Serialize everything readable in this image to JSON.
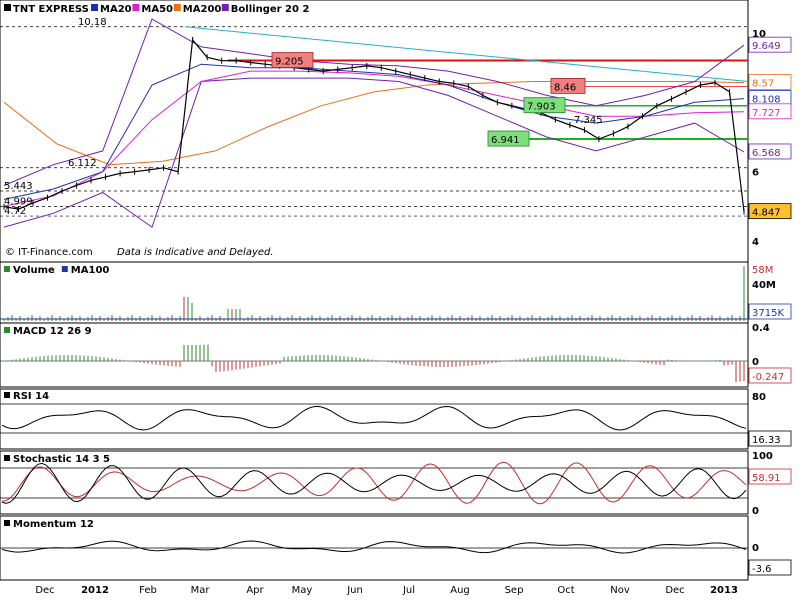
{
  "chart_data": {
    "type": "line",
    "instrument": "TNT EXPRESS",
    "credit": "© IT-Finance.com",
    "disclaimer": "Data is Indicative and Delayed.",
    "x_axis_labels": [
      "Dec",
      "2012",
      "Feb",
      "Mar",
      "Apr",
      "May",
      "Jun",
      "Jul",
      "Aug",
      "Sep",
      "Oct",
      "Nov",
      "Dec",
      "2013"
    ],
    "price": {
      "legend": [
        {
          "name": "TNT EXPRESS",
          "color": "#000000"
        },
        {
          "name": "MA20",
          "color": "#1a2fb5"
        },
        {
          "name": "MA50",
          "color": "#e020d0"
        },
        {
          "name": "MA200",
          "color": "#e87018"
        },
        {
          "name": "Bollinger 20 2",
          "color": "#7020b0"
        }
      ],
      "ylim": [
        4,
        10.2
      ],
      "y_ticks": [
        "10",
        "8",
        "6",
        "4"
      ],
      "close": [
        4.99,
        4.92,
        5.1,
        5.25,
        5.443,
        5.6,
        5.75,
        5.85,
        5.95,
        6.0,
        6.05,
        6.112,
        6.0,
        9.8,
        9.3,
        9.2,
        9.205,
        9.15,
        9.1,
        9.05,
        9.0,
        8.95,
        8.9,
        8.95,
        9.0,
        9.05,
        9.0,
        8.9,
        8.8,
        8.7,
        8.6,
        8.55,
        8.46,
        8.2,
        8.0,
        7.903,
        7.8,
        7.7,
        7.5,
        7.345,
        7.2,
        6.941,
        7.1,
        7.3,
        7.6,
        7.9,
        8.1,
        8.3,
        8.5,
        8.57,
        8.3,
        4.847
      ],
      "ma20": [
        5.2,
        5.5,
        6.0,
        8.5,
        9.1,
        9.0,
        9.0,
        8.9,
        8.8,
        8.5,
        8.0,
        7.6,
        7.4,
        7.6,
        8.0,
        8.108
      ],
      "ma50": [
        5.0,
        5.3,
        6.0,
        7.5,
        8.6,
        8.9,
        8.9,
        8.85,
        8.75,
        8.5,
        8.2,
        7.9,
        7.6,
        7.6,
        7.7,
        7.727
      ],
      "ma200": [
        8.0,
        6.8,
        6.2,
        6.3,
        6.6,
        7.3,
        7.9,
        8.3,
        8.5,
        8.55,
        8.6,
        8.6,
        8.6,
        8.6,
        8.57
      ],
      "bollinger_upper": [
        5.6,
        6.2,
        6.6,
        10.4,
        9.6,
        9.4,
        9.2,
        9.1,
        9.05,
        8.9,
        8.6,
        8.2,
        7.9,
        8.2,
        8.6,
        9.649
      ],
      "bollinger_lower": [
        4.4,
        4.8,
        5.4,
        4.4,
        8.6,
        8.7,
        8.7,
        8.7,
        8.6,
        8.2,
        7.6,
        7.0,
        6.6,
        7.0,
        7.4,
        6.568
      ],
      "level_labels": [
        {
          "text": "10.18",
          "value": 10.18
        },
        {
          "text": "6.112",
          "value": 6.112
        },
        {
          "text": "5.443",
          "value": 5.443
        },
        {
          "text": "4.999",
          "value": 4.999
        },
        {
          "text": "4.72",
          "value": 4.72
        },
        {
          "text": "9.205",
          "value": 9.205
        },
        {
          "text": "8.46",
          "value": 8.46
        },
        {
          "text": "7.903",
          "value": 7.903
        },
        {
          "text": "7.345",
          "value": 7.345
        },
        {
          "text": "6.941",
          "value": 6.941
        }
      ],
      "right_badges": [
        {
          "text": "9.649",
          "value": 9.649,
          "color": "#7020b0"
        },
        {
          "text": "8.57",
          "value": 8.57,
          "color": "#e87018"
        },
        {
          "text": "8.108",
          "value": 8.108,
          "color": "#1a2fb5"
        },
        {
          "text": "7.727",
          "value": 7.727,
          "color": "#e020d0"
        },
        {
          "text": "6.568",
          "value": 6.568,
          "color": "#7020b0"
        },
        {
          "text": "4.847",
          "value": 4.847,
          "color": "#000000"
        }
      ]
    },
    "volume": {
      "legend": [
        {
          "name": "Volume",
          "color": "#2a8a2a"
        },
        {
          "name": "MA100",
          "color": "#1a3aa0"
        }
      ],
      "y_ticks": [
        "40M"
      ],
      "right_badges": [
        {
          "text": "58M",
          "color": "#c03030"
        },
        {
          "text": "3715K",
          "color": "#1a3aa0"
        }
      ]
    },
    "macd": {
      "legend": [
        {
          "name": "MACD 12 26 9",
          "color": "#2a8a2a"
        }
      ],
      "y_ticks": [
        "0.4",
        "0"
      ],
      "right_badge": {
        "text": "-0.247",
        "color": "#c03030"
      }
    },
    "rsi": {
      "legend": [
        {
          "name": "RSI 14",
          "color": "#000000"
        }
      ],
      "y_ticks": [
        "80"
      ],
      "right_badge": {
        "text": "16.33",
        "color": "#000000"
      }
    },
    "stochastic": {
      "legend": [
        {
          "name": "Stochastic 14 3 5",
          "color": "#000000"
        }
      ],
      "y_ticks": [
        "100",
        "0"
      ],
      "right_badge": {
        "text": "58.91",
        "color": "#c03030"
      }
    },
    "momentum": {
      "legend": [
        {
          "name": "Momentum 12",
          "color": "#000000"
        }
      ],
      "y_ticks": [
        "0"
      ],
      "right_badge": {
        "text": "-3.6",
        "color": "#000000"
      }
    }
  }
}
